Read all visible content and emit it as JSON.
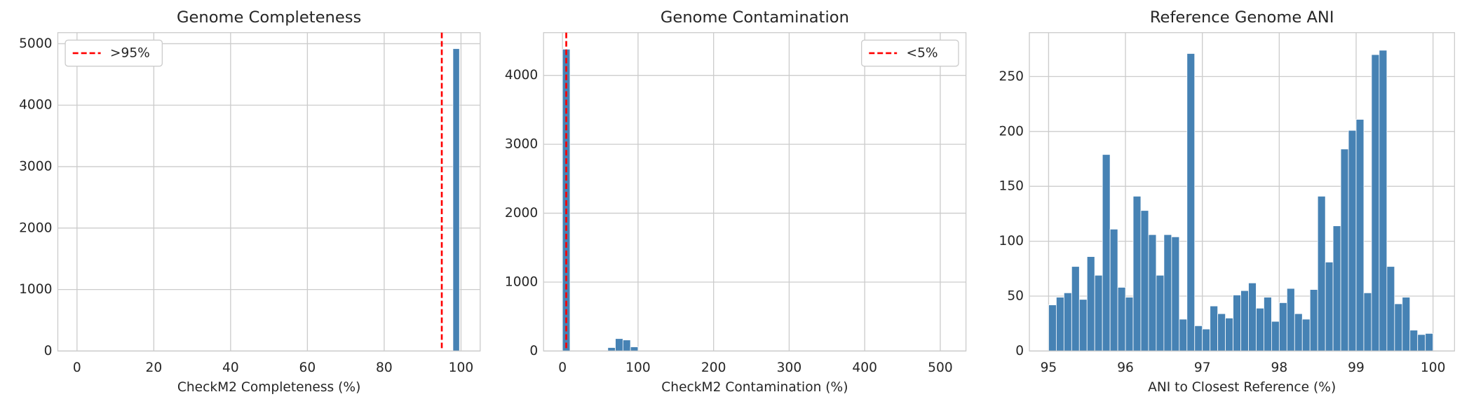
{
  "chart_data": [
    {
      "type": "histogram",
      "title": "Genome Completeness",
      "x_label": "CheckM2 Completeness (%)",
      "bins": [
        97.9,
        99.6
      ],
      "values": [
        4920
      ],
      "color": "#4682b4",
      "xlim": [
        -5,
        105
      ],
      "xticks": [
        0,
        20,
        40,
        60,
        80,
        100
      ],
      "ylim": [
        0,
        5180
      ],
      "yticks": [
        0,
        1000,
        2000,
        3000,
        4000,
        5000
      ],
      "grid": true,
      "reference_line": {
        "value": 95,
        "label": ">95%",
        "color": "#ff0000"
      },
      "legend": "upper left"
    },
    {
      "type": "histogram",
      "title": "Genome Contamination",
      "x_label": "CheckM2 Contamination (%)",
      "bins": [
        0,
        10,
        20,
        30,
        40,
        50,
        60,
        70,
        80,
        90,
        100
      ],
      "values": [
        4380,
        0,
        0,
        0,
        0,
        0,
        50,
        180,
        160,
        60
      ],
      "color": "#4682b4",
      "xlim": [
        -25,
        534
      ],
      "xticks": [
        0,
        100,
        200,
        300,
        400,
        500
      ],
      "ylim": [
        0,
        4620
      ],
      "yticks": [
        0,
        1000,
        2000,
        3000,
        4000
      ],
      "grid": true,
      "reference_line": {
        "value": 5,
        "label": "<5%",
        "color": "#ff0000"
      },
      "legend": "upper right"
    },
    {
      "type": "histogram",
      "title": "Reference Genome ANI",
      "x_label": "ANI to Closest Reference (%)",
      "bins": [
        95.0,
        95.1,
        95.2,
        95.3,
        95.4,
        95.5,
        95.6,
        95.7,
        95.8,
        95.9,
        96.0,
        96.1,
        96.2,
        96.3,
        96.4,
        96.5,
        96.6,
        96.7,
        96.8,
        96.9,
        97.0,
        97.1,
        97.2,
        97.3,
        97.4,
        97.5,
        97.6,
        97.7,
        97.8,
        97.9,
        98.0,
        98.1,
        98.2,
        98.3,
        98.4,
        98.5,
        98.6,
        98.7,
        98.8,
        98.9,
        99.0,
        99.1,
        99.2,
        99.3,
        99.4,
        99.5,
        99.6,
        99.7,
        99.8,
        99.9,
        100.0
      ],
      "values": [
        42,
        49,
        53,
        77,
        47,
        86,
        69,
        179,
        111,
        58,
        49,
        141,
        128,
        106,
        69,
        106,
        104,
        29,
        271,
        23,
        20,
        41,
        34,
        30,
        51,
        55,
        62,
        39,
        49,
        27,
        44,
        57,
        34,
        29,
        56,
        141,
        81,
        114,
        184,
        201,
        211,
        53,
        270,
        274,
        77,
        43,
        49,
        19,
        15,
        16
      ],
      "color": "#4682b4",
      "xlim": [
        94.75,
        100.28
      ],
      "xticks": [
        95,
        96,
        97,
        98,
        99,
        100
      ],
      "ylim": [
        0,
        290
      ],
      "yticks": [
        0,
        50,
        100,
        150,
        200,
        250
      ],
      "grid": true
    }
  ]
}
